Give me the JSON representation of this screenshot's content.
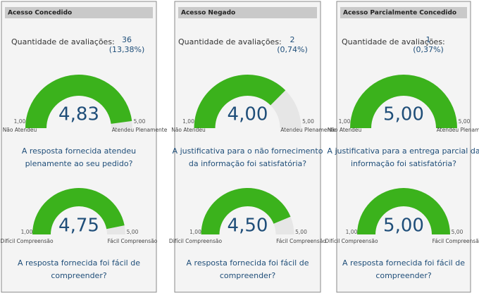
{
  "panels": [
    {
      "title": "Acesso Concedido",
      "count_label": "Quantidade de avaliações:",
      "count": 36,
      "share": {
        "value": 13.38,
        "label": "(13,38%)"
      },
      "gauges": [
        {
          "type": "gauge",
          "value": 4.83,
          "value_label": "4,83",
          "range": [
            {
              "value": 1,
              "label": "1,00"
            },
            {
              "value": 5,
              "label": "5,00"
            }
          ],
          "min_text": "Não Atendeu",
          "max_text": "Atendeu Plenamente",
          "question": [
            "A resposta fornecida atendeu",
            "plenamente ao seu pedido?"
          ]
        },
        {
          "type": "gauge",
          "value": 4.75,
          "value_label": "4,75",
          "range": [
            {
              "value": 1,
              "label": "1,00"
            },
            {
              "value": 5,
              "label": "5,00"
            }
          ],
          "min_text": "Difícil Compreensão",
          "max_text": "Fácil Compreensão",
          "question": [
            "A resposta fornecida foi fácil de",
            "compreender?"
          ]
        }
      ]
    },
    {
      "title": "Acesso Negado",
      "count_label": "Quantidade de avaliações:",
      "count": 2,
      "share": {
        "value": 0.74,
        "label": "(0,74%)"
      },
      "gauges": [
        {
          "type": "gauge",
          "value": 4.0,
          "value_label": "4,00",
          "range": [
            {
              "value": 1,
              "label": "1,00"
            },
            {
              "value": 5,
              "label": "5,00"
            }
          ],
          "min_text": "Não Atendeu",
          "max_text": "Atendeu Plenamente",
          "question": [
            "A justificativa para o não fornecimento",
            "da informação foi satisfatória?"
          ]
        },
        {
          "type": "gauge",
          "value": 4.5,
          "value_label": "4,50",
          "range": [
            {
              "value": 1,
              "label": "1,00"
            },
            {
              "value": 5,
              "label": "5,00"
            }
          ],
          "min_text": "Difícil Compreensão",
          "max_text": "Fácil Compreensão",
          "question": [
            "A resposta fornecida foi fácil de",
            "compreender?"
          ]
        }
      ]
    },
    {
      "title": "Acesso Parcialmente Concedido",
      "count_label": "Quantidade de avaliações:",
      "count": 1,
      "share": {
        "value": 0.37,
        "label": "(0,37%)"
      },
      "gauges": [
        {
          "type": "gauge",
          "value": 5.0,
          "value_label": "5,00",
          "range": [
            {
              "value": 1,
              "label": "1,00"
            },
            {
              "value": 5,
              "label": "5,00"
            }
          ],
          "min_text": "Não Atendeu",
          "max_text": "Atendeu Plenamente",
          "question": [
            "A justificativa para a entrega parcial da",
            "informação foi satisfatória?"
          ]
        },
        {
          "type": "gauge",
          "value": 5.0,
          "value_label": "5,00",
          "range": [
            {
              "value": 1,
              "label": "1,00"
            },
            {
              "value": 5,
              "label": "5,00"
            }
          ],
          "min_text": "Difícil Compreensão",
          "max_text": "Fácil Compreensão",
          "question": [
            "A resposta fornecida foi fácil de",
            "compreender?"
          ]
        }
      ]
    }
  ]
}
